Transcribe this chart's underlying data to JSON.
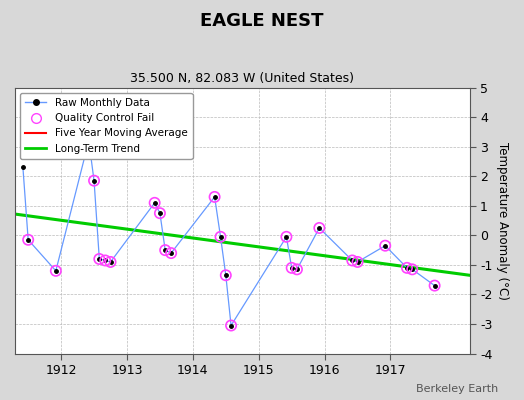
{
  "title": "EAGLE NEST",
  "subtitle": "35.500 N, 82.083 W (United States)",
  "ylabel": "Temperature Anomaly (°C)",
  "watermark": "Berkeley Earth",
  "ylim": [
    -4,
    5
  ],
  "xlim": [
    1911.3,
    1918.2
  ],
  "xticks": [
    1912,
    1913,
    1914,
    1915,
    1916,
    1917
  ],
  "yticks": [
    -4,
    -3,
    -2,
    -1,
    0,
    1,
    2,
    3,
    4,
    5
  ],
  "raw_x": [
    1911.42,
    1911.5,
    1911.92,
    1912.42,
    1912.5,
    1912.58,
    1912.67,
    1912.75,
    1913.42,
    1913.5,
    1913.58,
    1913.67,
    1914.33,
    1914.42,
    1914.5,
    1914.58,
    1915.42,
    1915.5,
    1915.58,
    1915.92,
    1916.42,
    1916.5,
    1916.92,
    1917.25,
    1917.33,
    1917.67
  ],
  "raw_y": [
    2.3,
    -0.15,
    -1.2,
    3.2,
    1.85,
    -0.8,
    -0.85,
    -0.9,
    1.1,
    0.75,
    -0.5,
    -0.6,
    1.3,
    -0.05,
    -1.35,
    -3.05,
    -0.05,
    -1.1,
    -1.15,
    0.25,
    -0.85,
    -0.9,
    -0.35,
    -1.1,
    -1.15,
    -1.7
  ],
  "qc_fail_x": [
    1911.5,
    1911.92,
    1912.42,
    1912.5,
    1912.58,
    1912.67,
    1912.75,
    1913.42,
    1913.5,
    1913.58,
    1913.67,
    1914.33,
    1914.42,
    1914.5,
    1914.58,
    1915.42,
    1915.5,
    1915.58,
    1915.92,
    1916.42,
    1916.5,
    1916.92,
    1917.25,
    1917.33,
    1917.67
  ],
  "qc_fail_y": [
    -0.15,
    -1.2,
    3.2,
    1.85,
    -0.8,
    -0.85,
    -0.9,
    1.1,
    0.75,
    -0.5,
    -0.6,
    1.3,
    -0.05,
    -1.35,
    -3.05,
    -0.05,
    -1.1,
    -1.15,
    0.25,
    -0.85,
    -0.9,
    -0.35,
    -1.1,
    -1.15,
    -1.7
  ],
  "trend_x": [
    1911.3,
    1918.2
  ],
  "trend_y": [
    0.72,
    -1.35
  ],
  "raw_line_color": "#6699ff",
  "raw_marker_color": "#000000",
  "qc_marker_color": "#ff44ff",
  "trend_color": "#00cc00",
  "five_year_color": "#ff0000",
  "background_color": "#d8d8d8",
  "plot_bg_color": "#ffffff",
  "grid_color": "#bbbbbb"
}
